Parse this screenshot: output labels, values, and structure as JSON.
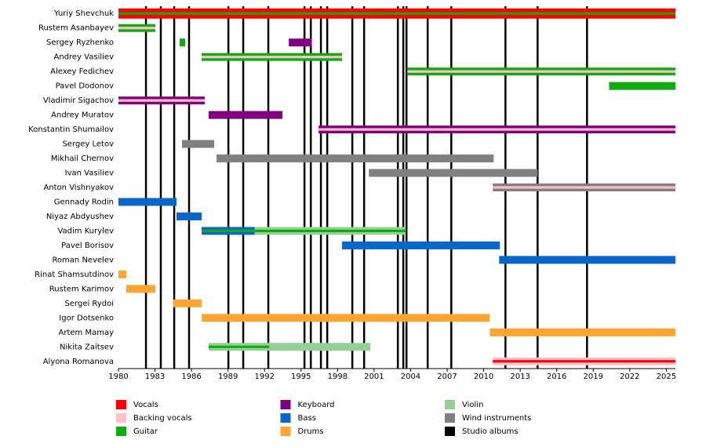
{
  "chart_data": {
    "type": "timeline",
    "xlim": [
      1980,
      2025.75
    ],
    "xticks": [
      1980,
      1983,
      1986,
      1989,
      1992,
      1995,
      1998,
      2001,
      2004,
      2007,
      2010,
      2013,
      2016,
      2019,
      2022,
      2025
    ],
    "roles": [
      {
        "name": "Vocals",
        "color": "#ff0000"
      },
      {
        "name": "Backing vocals",
        "color": "#ffc0cb"
      },
      {
        "name": "Guitar",
        "color": "#11aa11"
      },
      {
        "name": "Keyboard",
        "color": "#800080"
      },
      {
        "name": "Bass",
        "color": "#0a66c8"
      },
      {
        "name": "Drums",
        "color": "#ffa533"
      },
      {
        "name": "Violin",
        "color": "#98cf98"
      },
      {
        "name": "Wind instruments",
        "color": "#808080"
      },
      {
        "name": "Studio albums",
        "color": "#000000"
      }
    ],
    "albums": [
      1982.26,
      1983.48,
      1984.58,
      1985.8,
      1989.03,
      1990.25,
      1992.31,
      1995.28,
      1995.8,
      1996.63,
      1997.15,
      1999.21,
      2000.18,
      2002.95,
      2003.4,
      2003.66,
      2005.4,
      2007.34,
      2011.79,
      2014.43,
      2018.49
    ],
    "members": [
      {
        "name": "Yuriy Shevchuk",
        "segments": [
          {
            "roles": [
              "Vocals",
              "Guitar"
            ],
            "start": 1980,
            "end": 2025.75
          }
        ]
      },
      {
        "name": "Rustem Asanbayev",
        "segments": [
          {
            "roles": [
              "Guitar",
              "Backing vocals"
            ],
            "start": 1980,
            "end": 1983.03
          }
        ]
      },
      {
        "name": "Sergey Ryzhenko",
        "segments": [
          {
            "roles": [
              "Guitar"
            ],
            "start": 1985.03,
            "end": 1985.48
          },
          {
            "roles": [
              "Keyboard"
            ],
            "start": 1993.99,
            "end": 1995.86
          }
        ]
      },
      {
        "name": "Andrey Vasiliev",
        "segments": [
          {
            "roles": [
              "Guitar",
              "Backing vocals"
            ],
            "start": 1986.83,
            "end": 1998.37
          }
        ]
      },
      {
        "name": "Alexey Fedichev",
        "segments": [
          {
            "roles": [
              "Guitar",
              "Backing vocals"
            ],
            "start": 2003.73,
            "end": 2025.75
          }
        ]
      },
      {
        "name": "Pavel Dodonov",
        "segments": [
          {
            "roles": [
              "Guitar"
            ],
            "start": 2020.3,
            "end": 2025.75
          }
        ]
      },
      {
        "name": "Vladimir Sigachov",
        "segments": [
          {
            "roles": [
              "Keyboard",
              "Backing vocals"
            ],
            "start": 1980,
            "end": 1987.09
          }
        ]
      },
      {
        "name": "Andrey Muratov",
        "segments": [
          {
            "roles": [
              "Keyboard"
            ],
            "start": 1987.41,
            "end": 1993.47
          }
        ]
      },
      {
        "name": "Konstantin Shumailov",
        "segments": [
          {
            "roles": [
              "Keyboard",
              "Backing vocals"
            ],
            "start": 1996.44,
            "end": 2025.75
          }
        ]
      },
      {
        "name": "Sergey Letov",
        "segments": [
          {
            "roles": [
              "Wind instruments"
            ],
            "start": 1985.22,
            "end": 1987.87
          }
        ]
      },
      {
        "name": "Mikhail Chernov",
        "segments": [
          {
            "roles": [
              "Wind instruments"
            ],
            "start": 1988.06,
            "end": 2010.82
          }
        ]
      },
      {
        "name": "Ivan Vasiliev",
        "segments": [
          {
            "roles": [
              "Wind instruments"
            ],
            "start": 2000.57,
            "end": 2014.43
          }
        ]
      },
      {
        "name": "Anton Vishnyakov",
        "segments": [
          {
            "roles": [
              "Wind instruments",
              "Backing vocals"
            ],
            "start": 2010.75,
            "end": 2025.75
          }
        ]
      },
      {
        "name": "Gennady Rodin",
        "segments": [
          {
            "roles": [
              "Bass"
            ],
            "start": 1980,
            "end": 1984.77
          }
        ]
      },
      {
        "name": "Niyaz Abdyushev",
        "segments": [
          {
            "roles": [
              "Bass"
            ],
            "start": 1984.77,
            "end": 1986.83
          }
        ]
      },
      {
        "name": "Vadim Kurylev",
        "segments": [
          {
            "roles": [
              "Bass",
              "Guitar"
            ],
            "start": 1986.83,
            "end": 1991.2
          },
          {
            "roles": [
              "Violin",
              "Guitar"
            ],
            "start": 1991.2,
            "end": 2003.6
          }
        ]
      },
      {
        "name": "Pavel Borisov",
        "segments": [
          {
            "roles": [
              "Bass"
            ],
            "start": 1998.37,
            "end": 2011.33
          }
        ]
      },
      {
        "name": "Roman Nevelev",
        "segments": [
          {
            "roles": [
              "Bass"
            ],
            "start": 2011.27,
            "end": 2025.75
          }
        ]
      },
      {
        "name": "Rinat Shamsutdinov",
        "segments": [
          {
            "roles": [
              "Drums"
            ],
            "start": 1980,
            "end": 1980.64
          }
        ]
      },
      {
        "name": "Rustem Karimov",
        "segments": [
          {
            "roles": [
              "Drums"
            ],
            "start": 1980.64,
            "end": 1983.03
          }
        ]
      },
      {
        "name": "Sergei Rydoi",
        "segments": [
          {
            "roles": [
              "Drums"
            ],
            "start": 1984.51,
            "end": 1986.83
          }
        ]
      },
      {
        "name": "Igor Dotsenko",
        "segments": [
          {
            "roles": [
              "Drums"
            ],
            "start": 1986.83,
            "end": 2010.5
          }
        ]
      },
      {
        "name": "Artem Mamay",
        "segments": [
          {
            "roles": [
              "Drums"
            ],
            "start": 2010.5,
            "end": 2025.75
          }
        ]
      },
      {
        "name": "Nikita Zaitsev",
        "segments": [
          {
            "roles": [
              "Violin",
              "Guitar"
            ],
            "start": 1987.41,
            "end": 1992.38
          },
          {
            "roles": [
              "Violin"
            ],
            "start": 1992.38,
            "end": 2000.7
          }
        ]
      },
      {
        "name": "Alyona Romanova",
        "segments": [
          {
            "roles": [
              "Backing vocals",
              "Vocals"
            ],
            "start": 2010.75,
            "end": 2025.75
          }
        ]
      }
    ]
  }
}
